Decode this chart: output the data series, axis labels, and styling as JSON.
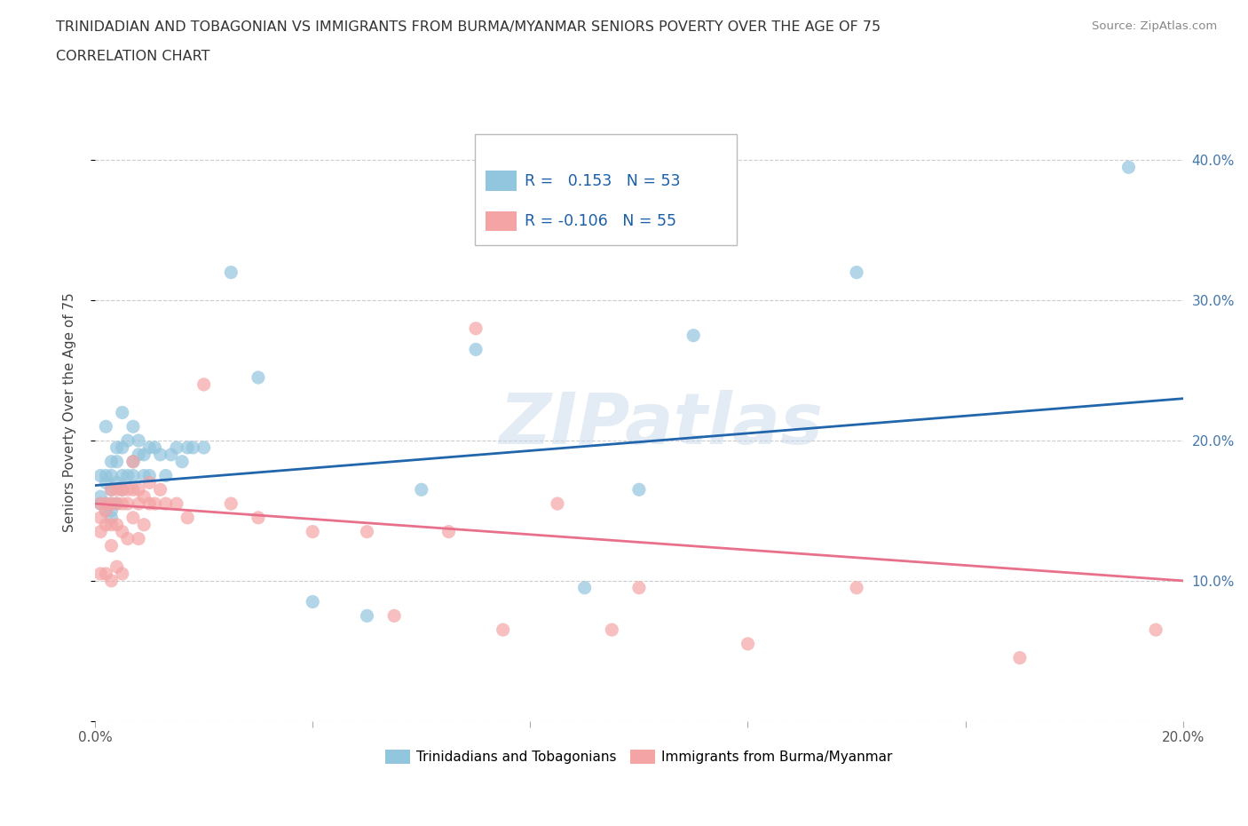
{
  "title_line1": "TRINIDADIAN AND TOBAGONIAN VS IMMIGRANTS FROM BURMA/MYANMAR SENIORS POVERTY OVER THE AGE OF 75",
  "title_line2": "CORRELATION CHART",
  "source": "Source: ZipAtlas.com",
  "ylabel": "Seniors Poverty Over the Age of 75",
  "xlim": [
    0.0,
    0.2
  ],
  "ylim": [
    0.0,
    0.44
  ],
  "xticks": [
    0.0,
    0.04,
    0.08,
    0.12,
    0.16,
    0.2
  ],
  "xtick_labels": [
    "0.0%",
    "",
    "",
    "",
    "",
    "20.0%"
  ],
  "yticks_right": [
    0.0,
    0.1,
    0.2,
    0.3,
    0.4
  ],
  "ytick_labels_right": [
    "",
    "10.0%",
    "20.0%",
    "30.0%",
    "40.0%"
  ],
  "color_blue": "#92C5DE",
  "color_pink": "#F4A4A4",
  "line_color_blue": "#2166AC",
  "line_color_pink": "#E8708A",
  "R_blue": 0.153,
  "N_blue": 53,
  "R_pink": -0.106,
  "N_pink": 55,
  "watermark": "ZIPatlas",
  "legend_label_blue": "Trinidadians and Tobagonians",
  "legend_label_pink": "Immigrants from Burma/Myanmar",
  "blue_x": [
    0.001,
    0.001,
    0.001,
    0.002,
    0.002,
    0.002,
    0.002,
    0.002,
    0.003,
    0.003,
    0.003,
    0.003,
    0.003,
    0.003,
    0.004,
    0.004,
    0.004,
    0.004,
    0.005,
    0.005,
    0.005,
    0.005,
    0.006,
    0.006,
    0.007,
    0.007,
    0.007,
    0.008,
    0.008,
    0.009,
    0.009,
    0.01,
    0.01,
    0.011,
    0.012,
    0.013,
    0.014,
    0.015,
    0.016,
    0.017,
    0.018,
    0.02,
    0.025,
    0.03,
    0.04,
    0.05,
    0.06,
    0.07,
    0.09,
    0.1,
    0.11,
    0.14,
    0.19
  ],
  "blue_y": [
    0.175,
    0.16,
    0.155,
    0.21,
    0.175,
    0.17,
    0.155,
    0.15,
    0.185,
    0.175,
    0.165,
    0.155,
    0.15,
    0.145,
    0.195,
    0.185,
    0.17,
    0.155,
    0.22,
    0.195,
    0.175,
    0.165,
    0.2,
    0.175,
    0.21,
    0.185,
    0.175,
    0.2,
    0.19,
    0.19,
    0.175,
    0.195,
    0.175,
    0.195,
    0.19,
    0.175,
    0.19,
    0.195,
    0.185,
    0.195,
    0.195,
    0.195,
    0.32,
    0.245,
    0.085,
    0.075,
    0.165,
    0.265,
    0.095,
    0.165,
    0.275,
    0.32,
    0.395
  ],
  "pink_x": [
    0.001,
    0.001,
    0.001,
    0.001,
    0.002,
    0.002,
    0.002,
    0.002,
    0.003,
    0.003,
    0.003,
    0.003,
    0.003,
    0.004,
    0.004,
    0.004,
    0.004,
    0.005,
    0.005,
    0.005,
    0.005,
    0.006,
    0.006,
    0.006,
    0.007,
    0.007,
    0.007,
    0.008,
    0.008,
    0.008,
    0.009,
    0.009,
    0.01,
    0.01,
    0.011,
    0.012,
    0.013,
    0.015,
    0.017,
    0.02,
    0.025,
    0.03,
    0.04,
    0.05,
    0.055,
    0.065,
    0.07,
    0.075,
    0.085,
    0.095,
    0.1,
    0.12,
    0.14,
    0.17,
    0.195
  ],
  "pink_y": [
    0.155,
    0.145,
    0.135,
    0.105,
    0.155,
    0.15,
    0.14,
    0.105,
    0.165,
    0.155,
    0.14,
    0.125,
    0.1,
    0.165,
    0.155,
    0.14,
    0.11,
    0.165,
    0.155,
    0.135,
    0.105,
    0.165,
    0.155,
    0.13,
    0.185,
    0.165,
    0.145,
    0.165,
    0.155,
    0.13,
    0.16,
    0.14,
    0.17,
    0.155,
    0.155,
    0.165,
    0.155,
    0.155,
    0.145,
    0.24,
    0.155,
    0.145,
    0.135,
    0.135,
    0.075,
    0.135,
    0.28,
    0.065,
    0.155,
    0.065,
    0.095,
    0.055,
    0.095,
    0.045,
    0.065
  ]
}
